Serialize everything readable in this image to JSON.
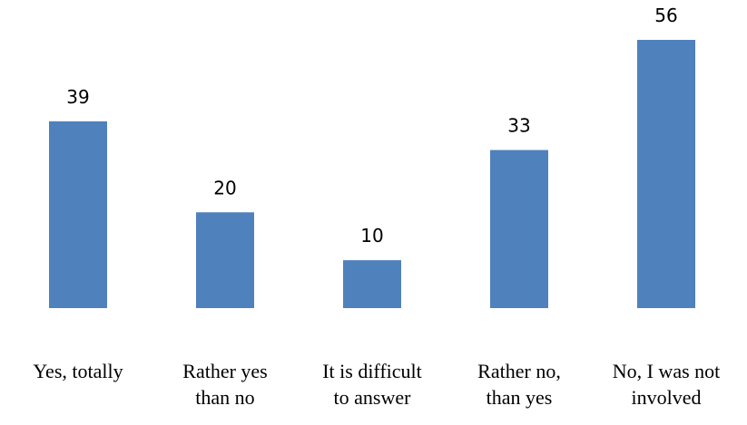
{
  "chart_data": {
    "type": "bar",
    "categories": [
      [
        "Yes, totally"
      ],
      [
        "Rather yes",
        "than no"
      ],
      [
        "It is difficult",
        "to answer"
      ],
      [
        "Rather no,",
        "than yes"
      ],
      [
        "No, I was not",
        "involved"
      ]
    ],
    "values": [
      39,
      20,
      10,
      33,
      56
    ],
    "title": "",
    "xlabel": "",
    "ylabel": "",
    "ylim": [
      0,
      56
    ],
    "grid": false,
    "legend": "none",
    "bar_color": "#4F81BD"
  }
}
